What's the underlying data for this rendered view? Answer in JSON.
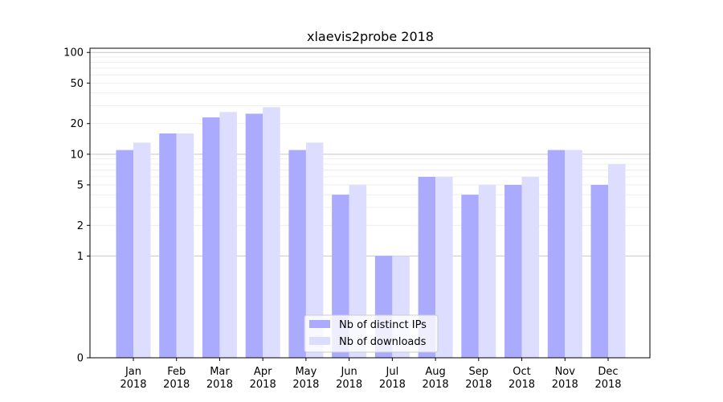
{
  "chart_data": {
    "type": "bar",
    "title": "xlaevis2probe 2018",
    "xlabel": "",
    "ylabel": "",
    "y_scale": "symlog",
    "ylim": [
      0,
      110
    ],
    "yticks": [
      0,
      1,
      2,
      5,
      10,
      20,
      50,
      100
    ],
    "categories": [
      [
        "Jan",
        "2018"
      ],
      [
        "Feb",
        "2018"
      ],
      [
        "Mar",
        "2018"
      ],
      [
        "Apr",
        "2018"
      ],
      [
        "May",
        "2018"
      ],
      [
        "Jun",
        "2018"
      ],
      [
        "Jul",
        "2018"
      ],
      [
        "Aug",
        "2018"
      ],
      [
        "Sep",
        "2018"
      ],
      [
        "Oct",
        "2018"
      ],
      [
        "Nov",
        "2018"
      ],
      [
        "Dec",
        "2018"
      ]
    ],
    "series": [
      {
        "name": "Nb of distinct IPs",
        "color": "#aaaaff",
        "values": [
          11,
          16,
          23,
          25,
          11,
          4,
          1,
          6,
          4,
          5,
          11,
          5
        ]
      },
      {
        "name": "Nb of downloads",
        "color": "#ddddff",
        "values": [
          13,
          16,
          26,
          29,
          13,
          5,
          1,
          6,
          5,
          6,
          11,
          8
        ]
      }
    ],
    "legend": "lower-center",
    "grid": "y-major-and-minor"
  }
}
